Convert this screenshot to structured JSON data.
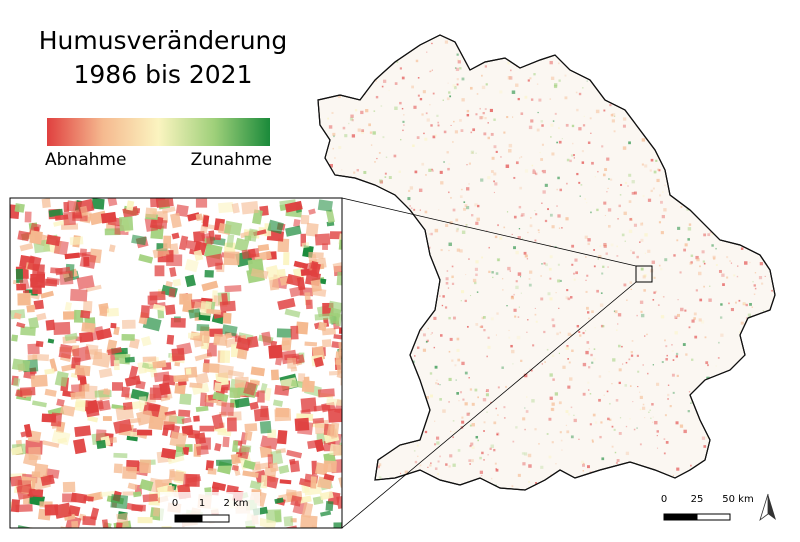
{
  "title": [
    "Humusveränderung",
    "1986 bis 2021"
  ],
  "legend": {
    "colors": [
      "#e0403f",
      "#f5b98f",
      "#fbf4c0",
      "#9fd07a",
      "#1a8a3a"
    ],
    "low_label": "Abnahme",
    "high_label": "Zunahme"
  },
  "inset_scale": {
    "labels": [
      "0",
      "1",
      "2 km"
    ]
  },
  "main_scale": {
    "labels": [
      "0",
      "25",
      "50 km"
    ]
  }
}
